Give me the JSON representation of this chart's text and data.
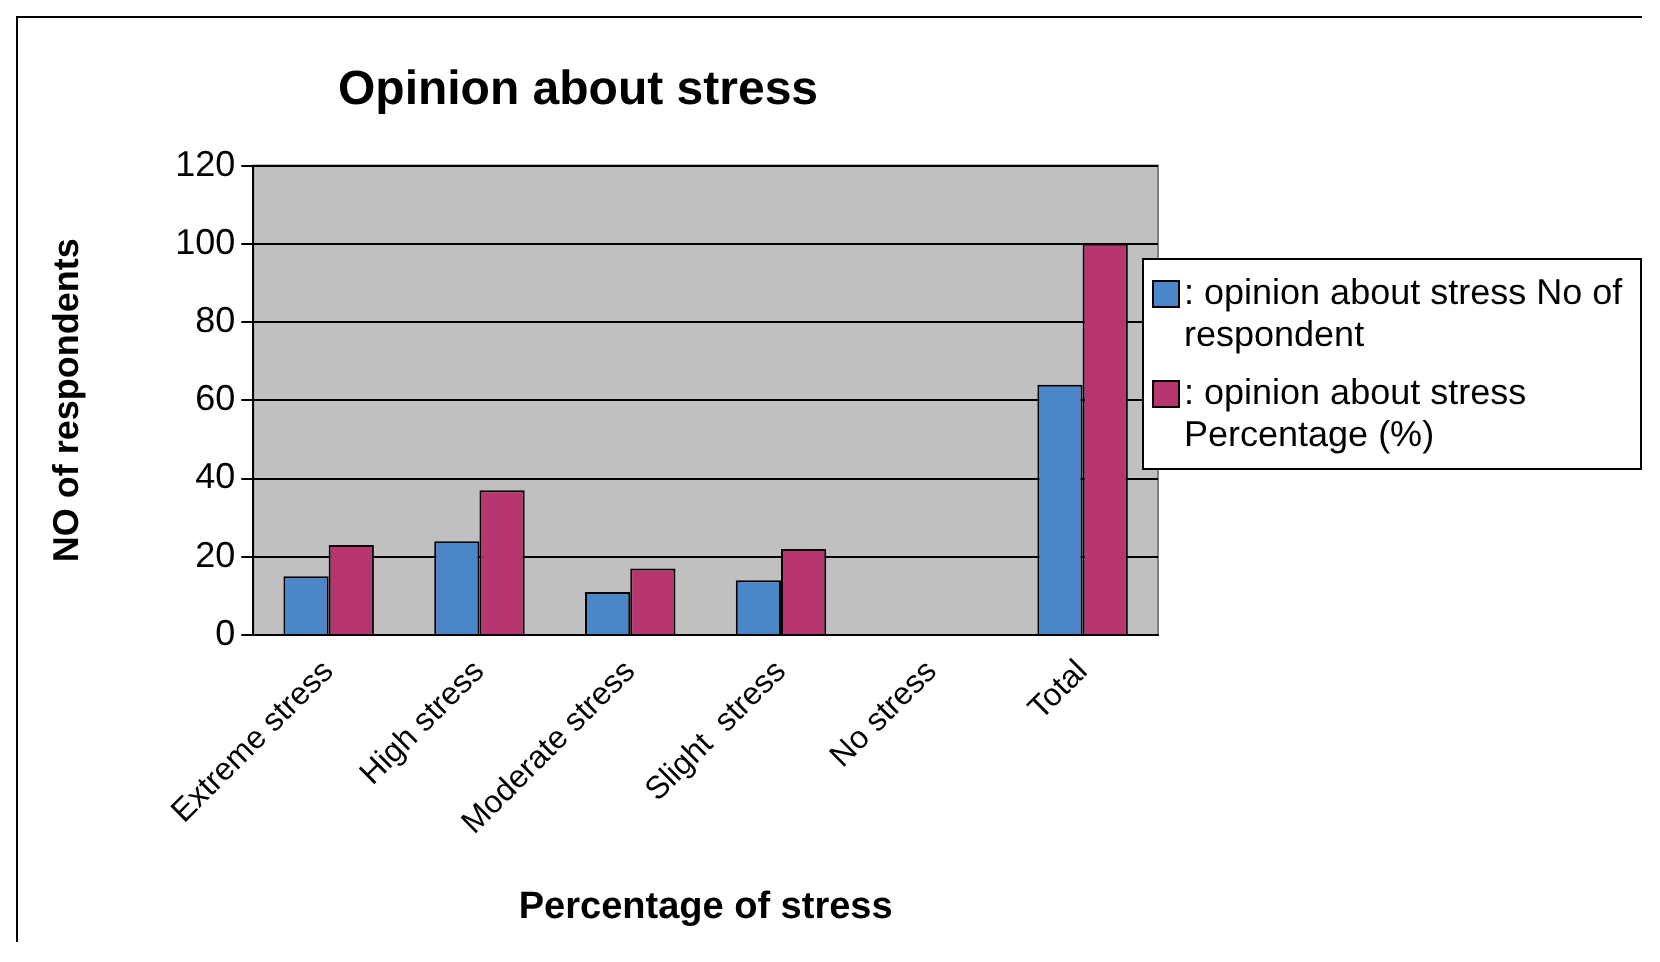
{
  "chart_data": {
    "type": "bar",
    "title": "Opinion about stress",
    "xlabel": "Percentage of stress",
    "ylabel": "NO of respondents",
    "categories": [
      "Extreme stress",
      "High stress",
      "Moderate stress",
      "Slight  stress",
      "No stress",
      "Total"
    ],
    "series": [
      {
        "name": ": opinion about stress No of respondent",
        "color": "#4a86c8",
        "values": [
          15,
          24,
          11,
          14,
          0,
          64
        ]
      },
      {
        "name": ": opinion about stress Percentage (%)",
        "color": "#b83670",
        "values": [
          23,
          37,
          17,
          22,
          0,
          100
        ]
      }
    ],
    "ylim": [
      0,
      120
    ],
    "yticks": [
      0,
      20,
      40,
      60,
      80,
      100,
      120
    ],
    "grid": "y",
    "legend": "right"
  }
}
